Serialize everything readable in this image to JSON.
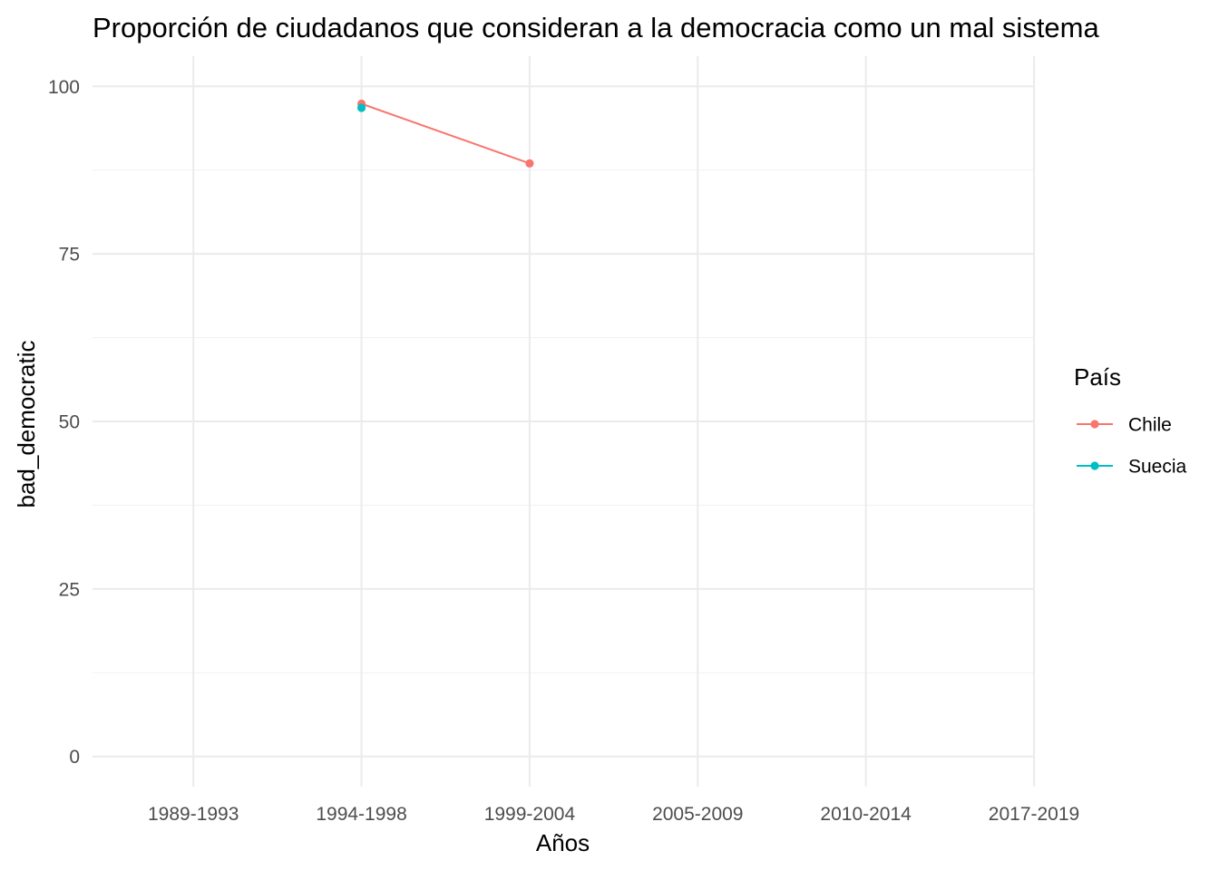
{
  "chart_data": {
    "type": "line",
    "title": "Proporción de ciudadanos que consideran a la democracia como un mal sistema",
    "xlabel": "Años",
    "ylabel": "bad_democratic",
    "categories": [
      "1989-1993",
      "1994-1998",
      "1999-2004",
      "2005-2009",
      "2010-2014",
      "2017-2019"
    ],
    "ylim": [
      -4.5,
      104.5
    ],
    "yticks": [
      0,
      25,
      50,
      75,
      100
    ],
    "grid": true,
    "legend": {
      "title": "País",
      "position": "right"
    },
    "series": [
      {
        "name": "Chile",
        "color": "#F8766D",
        "points": [
          {
            "x": "1994-1998",
            "y": 97.4
          },
          {
            "x": "1999-2004",
            "y": 88.5
          }
        ]
      },
      {
        "name": "Suecia",
        "color": "#00BFC4",
        "points": [
          {
            "x": "1994-1998",
            "y": 96.8
          }
        ]
      }
    ]
  }
}
